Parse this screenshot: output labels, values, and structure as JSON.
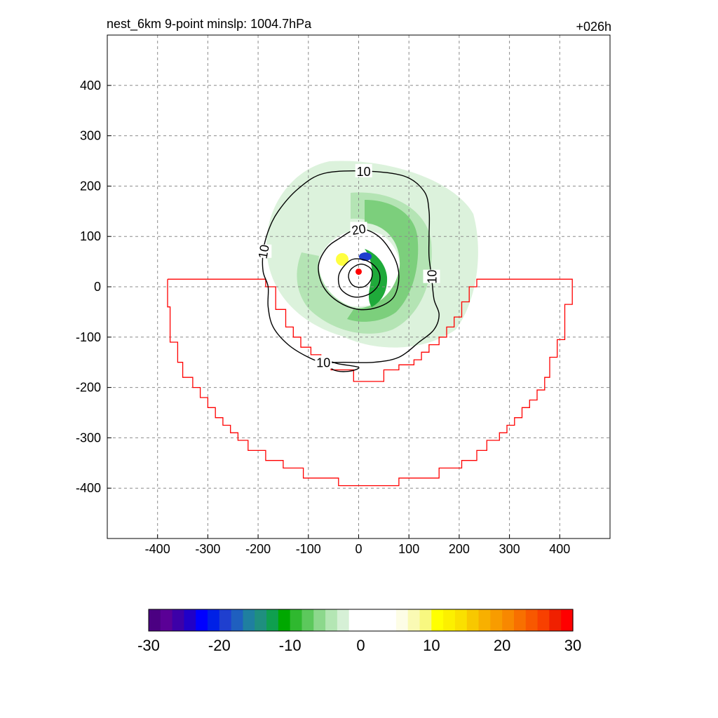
{
  "chart_data": {
    "type": "contour",
    "title": "nest_6km  9-point minslp: 1004.7hPa",
    "forecast_hour": "+026h",
    "xlim": [
      -500,
      500
    ],
    "ylim": [
      -500,
      500
    ],
    "x_ticks": [
      -400,
      -300,
      -200,
      -100,
      0,
      100,
      200,
      300,
      400
    ],
    "x_tick_labels": [
      "-400",
      "-300",
      "-200",
      "-100",
      "0",
      "100",
      "200",
      "300",
      "400"
    ],
    "y_ticks": [
      400,
      300,
      200,
      100,
      0,
      -100,
      -200,
      -300,
      -400
    ],
    "y_tick_labels": [
      "400",
      "300",
      "200",
      "100",
      "0",
      "-100",
      "-200",
      "-300",
      "-400"
    ],
    "grid": true,
    "center": {
      "x": 0,
      "y": 30,
      "color": "#ff0000"
    },
    "contours": [
      {
        "level": 10,
        "label": "10",
        "points": [
          [
            -70,
            225
          ],
          [
            10,
            230
          ],
          [
            90,
            220
          ],
          [
            130,
            190
          ],
          [
            140,
            150
          ],
          [
            140,
            100
          ],
          [
            140,
            60
          ],
          [
            145,
            20
          ],
          [
            150,
            -25
          ],
          [
            160,
            -55
          ],
          [
            150,
            -85
          ],
          [
            120,
            -110
          ],
          [
            80,
            -140
          ],
          [
            30,
            -150
          ],
          [
            -30,
            -150
          ],
          [
            -70,
            -150
          ],
          [
            -100,
            -140
          ],
          [
            -140,
            -115
          ],
          [
            -170,
            -80
          ],
          [
            -180,
            -40
          ],
          [
            -180,
            0
          ],
          [
            -190,
            30
          ],
          [
            -190,
            70
          ],
          [
            -180,
            110
          ],
          [
            -160,
            150
          ],
          [
            -120,
            195
          ],
          [
            -70,
            225
          ]
        ]
      },
      {
        "level": 10,
        "label": "10",
        "points": [
          [
            -70,
            -145
          ],
          [
            -50,
            -165
          ],
          [
            -20,
            -168
          ],
          [
            0,
            -160
          ],
          [
            -40,
            -153
          ],
          [
            -70,
            -145
          ]
        ]
      },
      {
        "level": 20,
        "label": "20",
        "points": [
          [
            -40,
            95
          ],
          [
            0,
            115
          ],
          [
            40,
            100
          ],
          [
            70,
            60
          ],
          [
            80,
            20
          ],
          [
            70,
            -20
          ],
          [
            40,
            -40
          ],
          [
            0,
            -45
          ],
          [
            -40,
            -30
          ],
          [
            -70,
            0
          ],
          [
            -80,
            40
          ],
          [
            -65,
            75
          ],
          [
            -40,
            95
          ]
        ]
      },
      {
        "level": 30,
        "label": "",
        "points": [
          [
            -30,
            40
          ],
          [
            -10,
            55
          ],
          [
            20,
            50
          ],
          [
            40,
            30
          ],
          [
            40,
            5
          ],
          [
            20,
            -15
          ],
          [
            -10,
            -20
          ],
          [
            -35,
            -5
          ],
          [
            -40,
            20
          ],
          [
            -30,
            40
          ]
        ]
      },
      {
        "level": 40,
        "label": "",
        "points": [
          [
            -15,
            35
          ],
          [
            5,
            45
          ],
          [
            25,
            35
          ],
          [
            25,
            15
          ],
          [
            10,
            0
          ],
          [
            -10,
            2
          ],
          [
            -20,
            18
          ],
          [
            -15,
            35
          ]
        ]
      }
    ],
    "domain_boundary": {
      "color": "#ff0000",
      "points": [
        [
          -380,
          15
        ],
        [
          -185,
          15
        ],
        [
          -185,
          0
        ],
        [
          -165,
          0
        ],
        [
          -165,
          -45
        ],
        [
          -145,
          -45
        ],
        [
          -145,
          -80
        ],
        [
          -130,
          -80
        ],
        [
          -130,
          -100
        ],
        [
          -115,
          -100
        ],
        [
          -115,
          -120
        ],
        [
          -95,
          -120
        ],
        [
          -95,
          -135
        ],
        [
          -75,
          -135
        ],
        [
          -75,
          -150
        ],
        [
          -55,
          -150
        ],
        [
          -55,
          -165
        ],
        [
          -10,
          -165
        ],
        [
          -10,
          -188
        ],
        [
          50,
          -188
        ],
        [
          50,
          -165
        ],
        [
          80,
          -165
        ],
        [
          80,
          -155
        ],
        [
          110,
          -155
        ],
        [
          110,
          -145
        ],
        [
          125,
          -145
        ],
        [
          125,
          -130
        ],
        [
          140,
          -130
        ],
        [
          140,
          -115
        ],
        [
          160,
          -115
        ],
        [
          160,
          -100
        ],
        [
          175,
          -100
        ],
        [
          175,
          -80
        ],
        [
          190,
          -80
        ],
        [
          190,
          -60
        ],
        [
          205,
          -60
        ],
        [
          205,
          -30
        ],
        [
          220,
          -30
        ],
        [
          220,
          0
        ],
        [
          235,
          0
        ],
        [
          235,
          15
        ],
        [
          425,
          15
        ],
        [
          425,
          -35
        ],
        [
          410,
          -35
        ],
        [
          410,
          -105
        ],
        [
          395,
          -105
        ],
        [
          395,
          -140
        ],
        [
          380,
          -140
        ],
        [
          380,
          -180
        ],
        [
          370,
          -180
        ],
        [
          370,
          -205
        ],
        [
          355,
          -205
        ],
        [
          355,
          -225
        ],
        [
          340,
          -225
        ],
        [
          340,
          -240
        ],
        [
          325,
          -240
        ],
        [
          325,
          -260
        ],
        [
          310,
          -260
        ],
        [
          310,
          -275
        ],
        [
          295,
          -275
        ],
        [
          295,
          -290
        ],
        [
          280,
          -290
        ],
        [
          280,
          -305
        ],
        [
          255,
          -305
        ],
        [
          255,
          -325
        ],
        [
          235,
          -325
        ],
        [
          235,
          -345
        ],
        [
          205,
          -345
        ],
        [
          205,
          -360
        ],
        [
          160,
          -360
        ],
        [
          160,
          -380
        ],
        [
          80,
          -380
        ],
        [
          80,
          -395
        ],
        [
          -40,
          -395
        ],
        [
          -40,
          -380
        ],
        [
          -110,
          -380
        ],
        [
          -110,
          -360
        ],
        [
          -150,
          -360
        ],
        [
          -150,
          -345
        ],
        [
          -185,
          -345
        ],
        [
          -185,
          -325
        ],
        [
          -220,
          -325
        ],
        [
          -220,
          -305
        ],
        [
          -240,
          -305
        ],
        [
          -240,
          -290
        ],
        [
          -255,
          -290
        ],
        [
          -255,
          -275
        ],
        [
          -270,
          -275
        ],
        [
          -270,
          -260
        ],
        [
          -285,
          -260
        ],
        [
          -285,
          -240
        ],
        [
          -300,
          -240
        ],
        [
          -300,
          -220
        ],
        [
          -315,
          -220
        ],
        [
          -315,
          -200
        ],
        [
          -330,
          -200
        ],
        [
          -330,
          -180
        ],
        [
          -350,
          -180
        ],
        [
          -350,
          -150
        ],
        [
          -360,
          -150
        ],
        [
          -360,
          -110
        ],
        [
          -375,
          -110
        ],
        [
          -375,
          -40
        ],
        [
          -380,
          -40
        ],
        [
          -380,
          15
        ]
      ]
    },
    "colorbar": {
      "min": -30,
      "max": 30,
      "tick_values": [
        -30,
        -20,
        -10,
        0,
        10,
        20,
        30
      ],
      "tick_labels": [
        "-30",
        "-20",
        "-10",
        "0",
        "10",
        "20",
        "30"
      ],
      "colors": [
        "#4b0082",
        "#5a0096",
        "#3d00a8",
        "#2000c8",
        "#0000ff",
        "#0020e6",
        "#1f3fcf",
        "#1f5fbf",
        "#1f7fa0",
        "#1f8f7f",
        "#0f9f4f",
        "#00a800",
        "#2fb82f",
        "#5cc85c",
        "#8cd88c",
        "#b4e6b4",
        "#d6f0d6",
        "#ffffff",
        "#ffffff",
        "#ffffff",
        "#ffffff",
        "#fdfde6",
        "#fafab4",
        "#f8f880",
        "#ffff00",
        "#fcf000",
        "#fae000",
        "#f8c800",
        "#f8b000",
        "#f89c00",
        "#f88800",
        "#f87000",
        "#f85800",
        "#f84000",
        "#f02000",
        "#ff0000"
      ]
    }
  }
}
